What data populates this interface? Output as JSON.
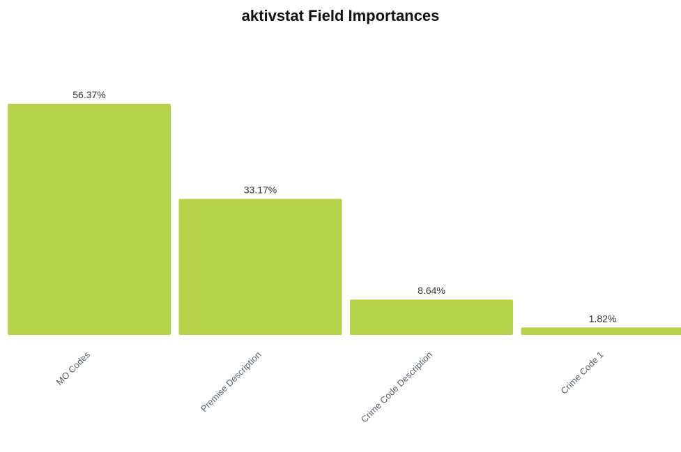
{
  "chart_data": {
    "type": "bar",
    "title": "aktivstat Field Importances",
    "categories": [
      "MO Codes",
      "Premise Description",
      "Crime Code Description",
      "Crime Code 1"
    ],
    "values": [
      56.37,
      33.17,
      8.64,
      1.82
    ],
    "data_labels": [
      "56.37%",
      "33.17%",
      "8.64%",
      "1.82%"
    ],
    "xlabel": "",
    "ylabel": "",
    "ylim": [
      0,
      56.37
    ],
    "grid": false,
    "legend": "none",
    "colors": {
      "bar": "#b5d24a"
    }
  }
}
